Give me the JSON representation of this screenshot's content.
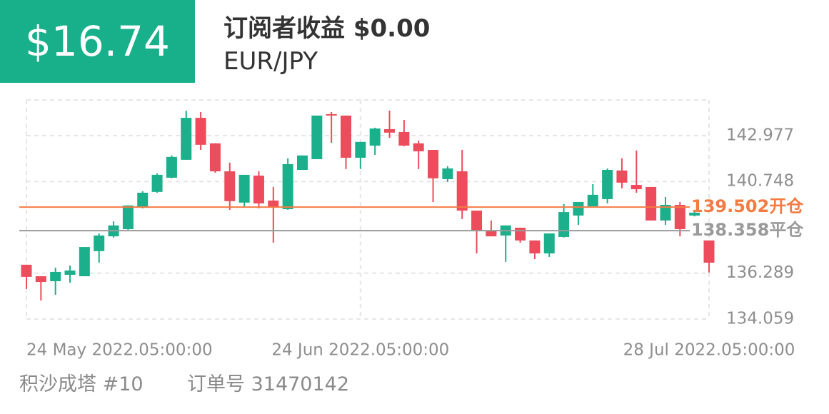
{
  "header": {
    "badge": "$16.74",
    "title": "订阅者收益 $0.00",
    "symbol": "EUR/JPY"
  },
  "chart_data": {
    "type": "candlestick",
    "up_color": "#1bb08b",
    "down_color": "#ec4c5b",
    "grid": true,
    "categories": [
      "24 May 2022.05:00:00",
      null,
      null,
      null,
      null,
      null,
      null,
      null,
      null,
      null,
      null,
      null,
      null,
      null,
      null,
      null,
      null,
      null,
      null,
      null,
      null,
      null,
      null,
      "24 Jun 2022.05:00:00",
      null,
      null,
      null,
      null,
      null,
      null,
      null,
      null,
      null,
      null,
      null,
      null,
      null,
      null,
      null,
      null,
      null,
      null,
      null,
      null,
      null,
      null,
      null,
      "28 Jul 2022.05:00:00"
    ],
    "open": [
      136.7,
      136.14,
      135.9,
      136.21,
      136.14,
      137.36,
      138.08,
      138.43,
      139.47,
      140.24,
      140.93,
      141.8,
      143.84,
      142.6,
      141.24,
      139.72,
      141.03,
      139.82,
      139.4,
      141.31,
      141.83,
      144.02,
      143.95,
      141.9,
      142.49,
      143.29,
      143.15,
      142.6,
      142.28,
      140.86,
      141.24,
      139.33,
      138.33,
      138.12,
      138.5,
      137.88,
      137.25,
      138.05,
      139.09,
      139.54,
      139.89,
      141.28,
      140.58,
      140.48,
      138.85,
      139.61,
      139.09,
      137.88
    ],
    "high": [
      136.7,
      136.14,
      136.56,
      136.66,
      137.56,
      138.22,
      138.81,
      139.58,
      140.27,
      141.14,
      142.01,
      144.19,
      144.12,
      142.6,
      141.66,
      141.07,
      141.24,
      140.48,
      141.87,
      142.01,
      143.95,
      144.12,
      143.95,
      142.67,
      143.36,
      144.19,
      143.74,
      142.73,
      142.28,
      141.49,
      142.28,
      139.33,
      138.85,
      138.61,
      138.5,
      137.88,
      138.22,
      139.65,
      139.75,
      140.62,
      141.38,
      141.87,
      142.25,
      140.48,
      139.99,
      139.75,
      139.3,
      137.88
    ],
    "low": [
      135.52,
      134.96,
      135.24,
      135.83,
      136.14,
      136.8,
      138.02,
      138.4,
      139.44,
      140.2,
      140.9,
      141.8,
      142.28,
      141.17,
      139.37,
      139.51,
      139.44,
      137.77,
      139.37,
      141.31,
      141.83,
      142.63,
      141.35,
      141.35,
      142.04,
      142.87,
      142.46,
      141.35,
      139.75,
      140.72,
      138.92,
      137.25,
      138.08,
      136.84,
      137.77,
      136.97,
      137.08,
      138.02,
      138.64,
      139.54,
      139.68,
      140.41,
      140.2,
      138.85,
      138.64,
      138.08,
      139.05,
      136.32
    ],
    "close": [
      136.11,
      135.86,
      136.35,
      136.42,
      137.56,
      138.12,
      138.61,
      139.58,
      140.2,
      141.07,
      141.94,
      143.84,
      142.53,
      141.24,
      139.79,
      141.07,
      139.68,
      139.47,
      141.59,
      142.01,
      143.95,
      143.95,
      141.9,
      142.67,
      143.32,
      143.12,
      142.49,
      142.21,
      140.9,
      141.38,
      139.33,
      138.33,
      138.08,
      138.61,
      137.88,
      137.25,
      138.22,
      139.26,
      139.75,
      140.1,
      141.31,
      140.69,
      140.37,
      138.85,
      139.61,
      138.43,
      139.23,
      136.8
    ],
    "ylim": [
      134.059,
      144.71
    ],
    "yticks": [
      134.059,
      136.289,
      140.748,
      142.977
    ],
    "reference_lines": [
      {
        "value": 139.502,
        "label": "139.502开仓",
        "color": "#f47b42"
      },
      {
        "value": 138.358,
        "label": "138.358平仓",
        "color": "#9a9a9a"
      }
    ]
  },
  "footer": {
    "strategy": "积沙成塔 #10",
    "order": "订单号 31470142"
  }
}
